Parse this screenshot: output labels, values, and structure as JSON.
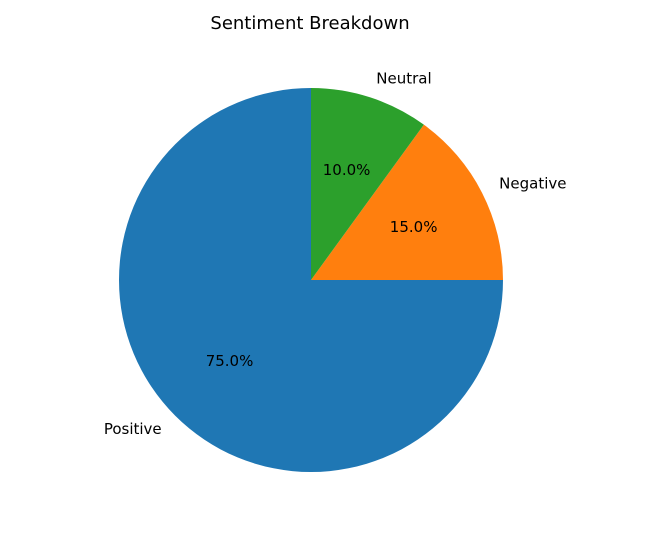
{
  "chart_data": {
    "type": "pie",
    "title": "Sentiment Breakdown",
    "categories": [
      "Positive",
      "Negative",
      "Neutral"
    ],
    "values": [
      75,
      15,
      10
    ],
    "percent_labels": [
      "75.0%",
      "15.0%",
      "10.0%"
    ],
    "colors": [
      "#1f77b4",
      "#ff7f0e",
      "#2ca02c"
    ],
    "start_angle_deg": 90,
    "direction": "counterclockwise",
    "legend": "none"
  }
}
